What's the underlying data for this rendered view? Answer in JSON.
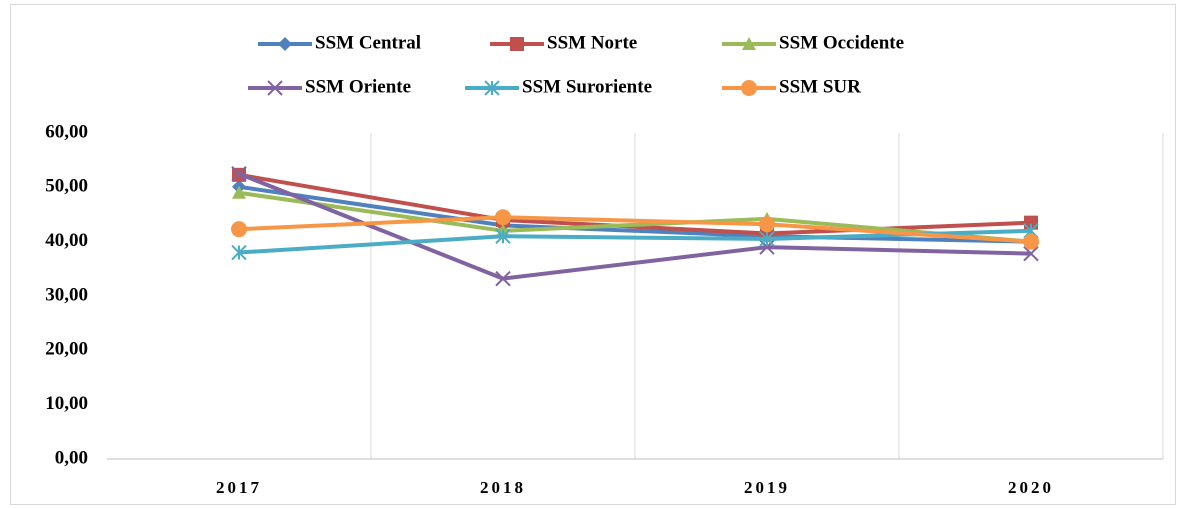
{
  "chart_data": {
    "type": "line",
    "categories": [
      "2017",
      "2018",
      "2019",
      "2020"
    ],
    "series": [
      {
        "name": "SSM Central",
        "color": "#4f81bd",
        "marker": "diamond",
        "values": [
          50.1,
          43.0,
          41.0,
          40.0
        ]
      },
      {
        "name": "SSM Norte",
        "color": "#c0504d",
        "marker": "square",
        "values": [
          52.3,
          44.0,
          41.5,
          43.5
        ]
      },
      {
        "name": "SSM Occidente",
        "color": "#9bbb59",
        "marker": "triangle",
        "values": [
          49.0,
          42.0,
          44.2,
          40.0
        ]
      },
      {
        "name": "SSM Oriente",
        "color": "#8064a2",
        "marker": "x",
        "values": [
          52.5,
          33.2,
          39.0,
          37.8
        ]
      },
      {
        "name": "SSM Suroriente",
        "color": "#4bacc6",
        "marker": "star",
        "values": [
          38.0,
          41.0,
          40.5,
          42.0
        ]
      },
      {
        "name": "SSM SUR",
        "color": "#f79646",
        "marker": "circle",
        "values": [
          42.3,
          44.5,
          43.2,
          40.0
        ]
      }
    ],
    "ylim": [
      0,
      60
    ],
    "yticks": [
      {
        "value": 0,
        "label": "0,00"
      },
      {
        "value": 10,
        "label": "10,00"
      },
      {
        "value": 20,
        "label": "20,00"
      },
      {
        "value": 30,
        "label": "30,00"
      },
      {
        "value": 40,
        "label": "40,00"
      },
      {
        "value": 50,
        "label": "50,00"
      },
      {
        "value": 60,
        "label": "60,00"
      }
    ],
    "legend": "top"
  }
}
